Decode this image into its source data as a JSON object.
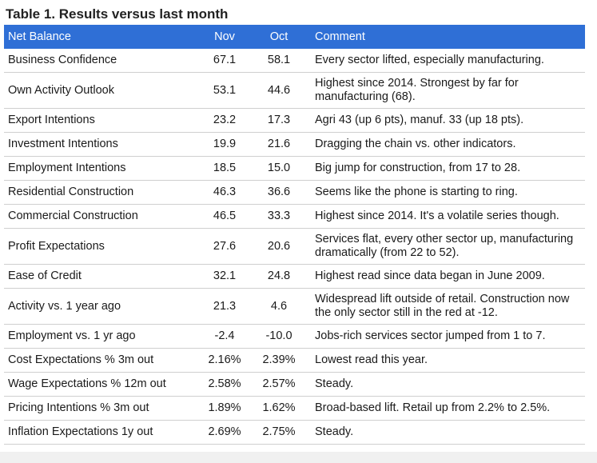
{
  "table": {
    "title": "Table 1. Results versus last month",
    "headers": [
      "Net Balance",
      "Nov",
      "Oct",
      "Comment"
    ],
    "header_color": "#2f6fd6",
    "rows": [
      {
        "label": "Business Confidence",
        "nov": "67.1",
        "oct": "58.1",
        "comment": "Every sector lifted, especially manufacturing.",
        "lines": 1
      },
      {
        "label": "Own Activity Outlook",
        "nov": "53.1",
        "oct": "44.6",
        "comment": "Highest since 2014. Strongest by far for manufacturing (68).",
        "lines": 2
      },
      {
        "label": "Export Intentions",
        "nov": "23.2",
        "oct": "17.3",
        "comment": "Agri 43 (up 6 pts), manuf. 33 (up 18 pts).",
        "lines": 1
      },
      {
        "label": "Investment Intentions",
        "nov": "19.9",
        "oct": "21.6",
        "comment": "Dragging the chain vs. other indicators.",
        "lines": 1
      },
      {
        "label": "Employment Intentions",
        "nov": "18.5",
        "oct": "15.0",
        "comment": "Big jump for construction, from 17 to 28.",
        "lines": 1
      },
      {
        "label": "Residential Construction",
        "nov": "46.3",
        "oct": "36.6",
        "comment": "Seems like the phone is starting to ring.",
        "lines": 1
      },
      {
        "label": "Commercial Construction",
        "nov": "46.5",
        "oct": "33.3",
        "comment": "Highest since 2014. It's a volatile series though.",
        "lines": 1
      },
      {
        "label": "Profit Expectations",
        "nov": "27.6",
        "oct": "20.6",
        "comment": "Services flat, every other sector up, manufacturing dramatically (from 22 to 52).",
        "lines": 2
      },
      {
        "label": "Ease of Credit",
        "nov": "32.1",
        "oct": "24.8",
        "comment": "Highest read since data began in June 2009.",
        "lines": 1
      },
      {
        "label": "Activity vs. 1 year ago",
        "nov": "21.3",
        "oct": "4.6",
        "comment": "Widespread lift outside of retail. Construction now the only sector still in the red at -12.",
        "lines": 2
      },
      {
        "label": "Employment vs. 1 yr ago",
        "nov": "-2.4",
        "oct": "-10.0",
        "comment": "Jobs-rich services sector jumped from 1 to 7.",
        "lines": 1
      },
      {
        "label": "Cost Expectations % 3m out",
        "nov": "2.16%",
        "oct": "2.39%",
        "comment": "Lowest read this year.",
        "lines": 1
      },
      {
        "label": "Wage Expectations % 12m out",
        "nov": "2.58%",
        "oct": "2.57%",
        "comment": "Steady.",
        "lines": 1
      },
      {
        "label": "Pricing Intentions % 3m out",
        "nov": "1.89%",
        "oct": "1.62%",
        "comment": "Broad-based lift. Retail up from 2.2% to 2.5%.",
        "lines": 1
      },
      {
        "label": "Inflation Expectations 1y out",
        "nov": "2.69%",
        "oct": "2.75%",
        "comment": "Steady.",
        "lines": 1
      }
    ]
  }
}
